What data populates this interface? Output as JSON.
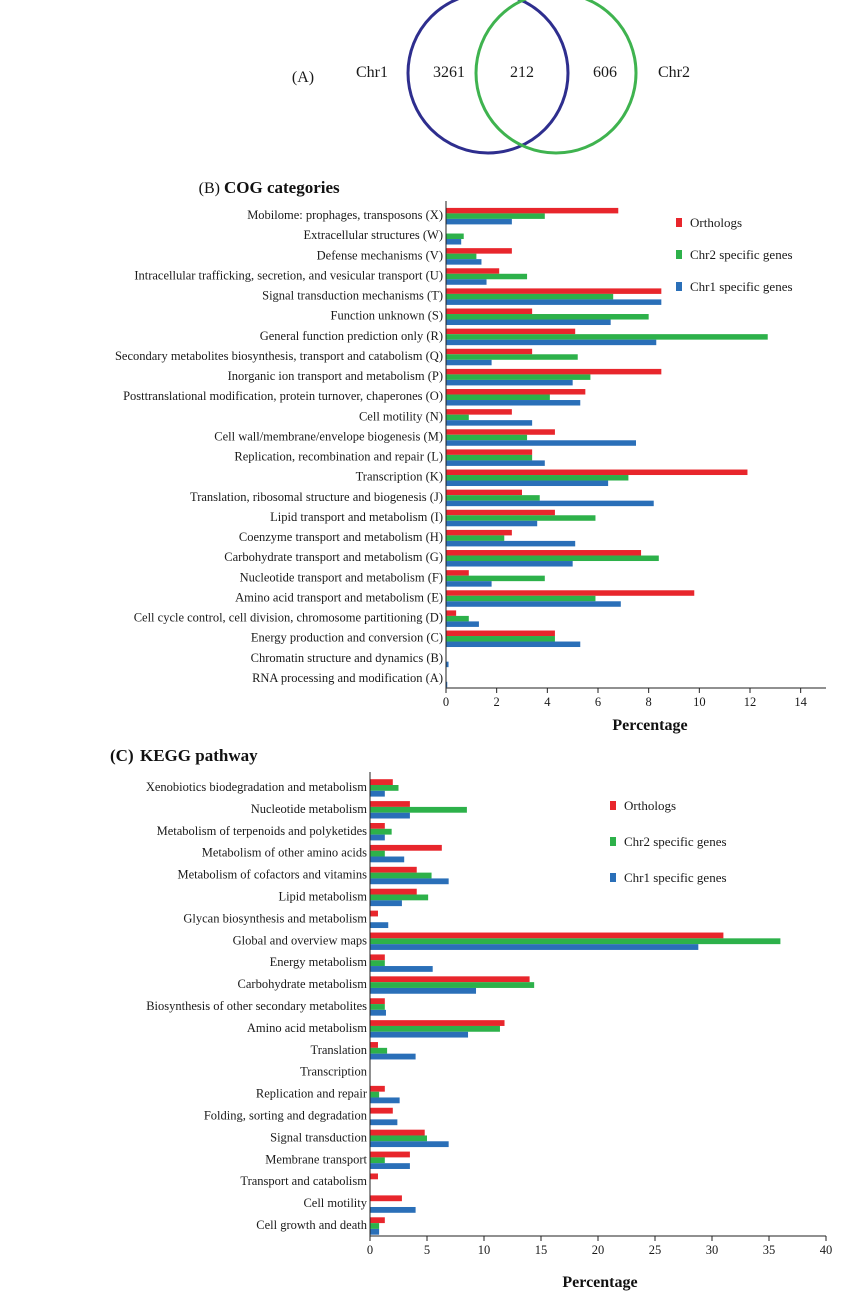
{
  "colors": {
    "orthologs": "#e8262c",
    "chr2": "#2db14a",
    "chr1": "#2a6fb8",
    "venn_chr1": "#2e2e8e",
    "venn_chr2": "#3fb34f"
  },
  "venn": {
    "label": "(A)",
    "set1_label": "Chr1",
    "set2_label": "Chr2",
    "only1": "3261",
    "shared": "212",
    "only2": "606"
  },
  "chart_data": [
    {
      "type": "bar",
      "orientation": "horizontal",
      "panel_label": "(B)",
      "title": "COG categories",
      "xlabel": "Percentage",
      "xlim": [
        0,
        15
      ],
      "xticks": [
        0,
        2,
        4,
        6,
        8,
        10,
        12,
        14
      ],
      "legend_position": "top-right",
      "categories": [
        "Mobilome: prophages, transposons (X)",
        "Extracellular structures (W)",
        "Defense mechanisms (V)",
        "Intracellular trafficking, secretion, and vesicular transport (U)",
        "Signal transduction mechanisms (T)",
        "Function unknown (S)",
        "General function prediction only (R)",
        "Secondary metabolites biosynthesis, transport and catabolism (Q)",
        "Inorganic ion transport and metabolism (P)",
        "Posttranslational modification, protein turnover, chaperones (O)",
        "Cell motility (N)",
        "Cell wall/membrane/envelope biogenesis (M)",
        "Replication, recombination and repair (L)",
        "Transcription (K)",
        "Translation, ribosomal structure and biogenesis (J)",
        "Lipid transport and metabolism (I)",
        "Coenzyme transport and metabolism (H)",
        "Carbohydrate transport and metabolism (G)",
        "Nucleotide transport and metabolism (F)",
        "Amino acid transport and metabolism (E)",
        "Cell cycle control, cell division, chromosome partitioning (D)",
        "Energy production and conversion (C)",
        "Chromatin structure and dynamics (B)",
        "RNA processing and modification (A)"
      ],
      "series": [
        {
          "name": "Orthologs",
          "values": [
            6.8,
            0.0,
            2.6,
            2.1,
            8.5,
            3.4,
            5.1,
            3.4,
            8.5,
            5.5,
            2.6,
            4.3,
            3.4,
            11.9,
            3.0,
            4.3,
            2.6,
            7.7,
            0.9,
            9.8,
            0.4,
            4.3,
            0.0,
            0.0
          ]
        },
        {
          "name": "Chr2 specific genes",
          "values": [
            3.9,
            0.7,
            1.2,
            3.2,
            6.6,
            8.0,
            12.7,
            5.2,
            5.7,
            4.1,
            0.9,
            3.2,
            3.4,
            7.2,
            3.7,
            5.9,
            2.3,
            8.4,
            3.9,
            5.9,
            0.9,
            4.3,
            0.0,
            0.0
          ]
        },
        {
          "name": "Chr1 specific genes",
          "values": [
            2.6,
            0.6,
            1.4,
            1.6,
            8.5,
            6.5,
            8.3,
            1.8,
            5.0,
            5.3,
            3.4,
            7.5,
            3.9,
            6.4,
            8.2,
            3.6,
            5.1,
            5.0,
            1.8,
            6.9,
            1.3,
            5.3,
            0.1,
            0.05
          ]
        }
      ]
    },
    {
      "type": "bar",
      "orientation": "horizontal",
      "panel_label": "(C)",
      "title": "KEGG pathway",
      "xlabel": "Percentage",
      "xlim": [
        0,
        40
      ],
      "xticks": [
        0,
        5,
        10,
        15,
        20,
        25,
        30,
        35,
        40
      ],
      "legend_position": "top-right",
      "categories": [
        "Xenobiotics biodegradation and metabolism",
        "Nucleotide metabolism",
        "Metabolism of terpenoids and polyketides",
        "Metabolism of other amino acids",
        "Metabolism of cofactors and vitamins",
        "Lipid metabolism",
        "Glycan biosynthesis and metabolism",
        "Global and overview maps",
        "Energy metabolism",
        "Carbohydrate metabolism",
        "Biosynthesis of other secondary metabolites",
        "Amino acid metabolism",
        "Translation",
        "Transcription",
        "Replication and repair",
        "Folding, sorting and degradation",
        "Signal transduction",
        "Membrane transport",
        "Transport and catabolism",
        "Cell motility",
        "Cell growth and death"
      ],
      "series": [
        {
          "name": "Orthologs",
          "values": [
            2.0,
            3.5,
            1.3,
            6.3,
            4.1,
            4.1,
            0.7,
            31.0,
            1.3,
            14.0,
            1.3,
            11.8,
            0.7,
            0.0,
            1.3,
            2.0,
            4.8,
            3.5,
            0.7,
            2.8,
            1.3
          ]
        },
        {
          "name": "Chr2 specific genes",
          "values": [
            2.5,
            8.5,
            1.9,
            1.3,
            5.4,
            5.1,
            0.0,
            36.0,
            1.3,
            14.4,
            1.3,
            11.4,
            1.5,
            0.0,
            0.8,
            0.0,
            5.0,
            1.3,
            0.0,
            0.0,
            0.8
          ]
        },
        {
          "name": "Chr1 specific genes",
          "values": [
            1.3,
            3.5,
            1.3,
            3.0,
            6.9,
            2.8,
            1.6,
            28.8,
            5.5,
            9.3,
            1.4,
            8.6,
            4.0,
            0.0,
            2.6,
            2.4,
            6.9,
            3.5,
            0.0,
            4.0,
            0.8
          ]
        }
      ]
    }
  ]
}
